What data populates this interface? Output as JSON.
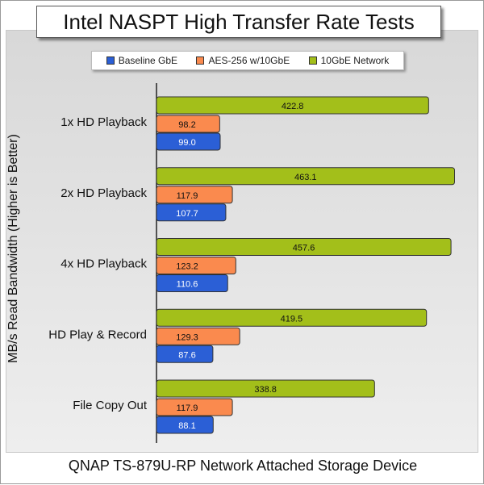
{
  "title": "Intel NASPT High Transfer Rate Tests",
  "footer": "QNAP TS-879U-RP Network Attached Storage Device",
  "colors": {
    "baseline": "#2b5fd6",
    "aes": "#fa8a4e",
    "tengbe": "#a3bf1a"
  },
  "chart_data": {
    "type": "bar",
    "orientation": "horizontal",
    "title": "Intel NASPT High Transfer Rate Tests",
    "ylabel": "MB/s Read Bandwidth (Higher is Better)",
    "xlabel": "",
    "xlim": [
      0,
      470
    ],
    "legend_position": "top",
    "grid": false,
    "categories": [
      "1x HD Playback",
      "2x HD Playback",
      "4x HD Playback",
      "HD Play & Record",
      "File Copy Out"
    ],
    "series": [
      {
        "name": "Baseline GbE",
        "color": "#2b5fd6",
        "values": [
          99.0,
          107.7,
          110.6,
          87.6,
          88.1
        ]
      },
      {
        "name": "AES-256 w/10GbE",
        "color": "#fa8a4e",
        "values": [
          98.2,
          117.9,
          123.2,
          129.3,
          117.9
        ]
      },
      {
        "name": "10GbE Network",
        "color": "#a3bf1a",
        "values": [
          422.8,
          463.1,
          457.6,
          419.5,
          338.8
        ]
      }
    ]
  }
}
